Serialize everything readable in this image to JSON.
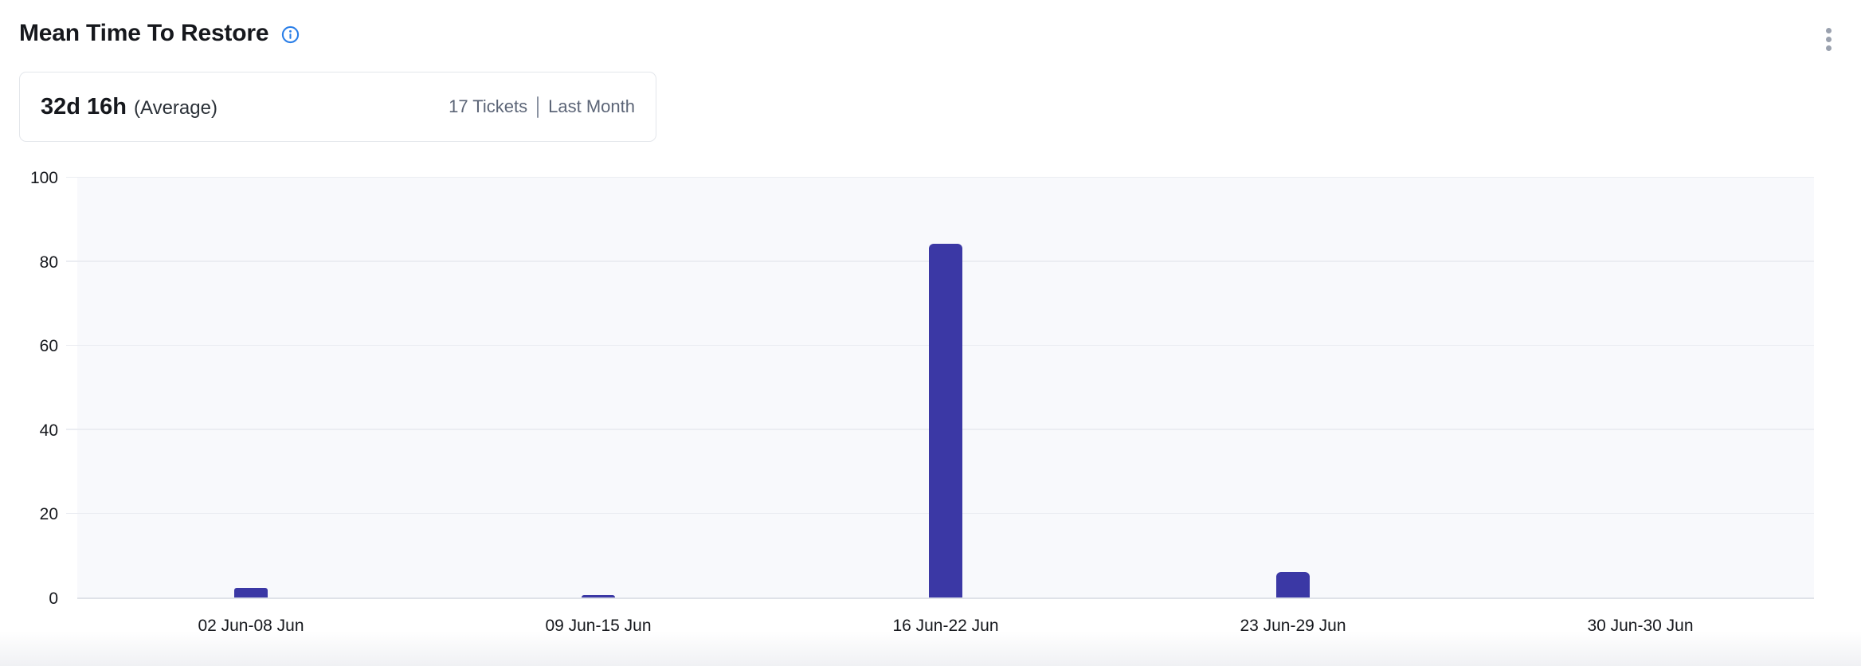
{
  "header": {
    "title": "Mean Time To Restore",
    "icons": {
      "info": "info-icon",
      "menu": "kebab-menu-icon"
    }
  },
  "summary": {
    "average_value": "32d 16h",
    "average_label": "(Average)",
    "tickets_label": "17 Tickets",
    "period_label": "Last Month"
  },
  "chart_data": {
    "type": "bar",
    "title": "Mean Time To Restore",
    "categories": [
      "02 Jun-08 Jun",
      "09 Jun-15 Jun",
      "16 Jun-22 Jun",
      "23 Jun-29 Jun",
      "30 Jun-30 Jun"
    ],
    "values": [
      2.2,
      0.5,
      84,
      6,
      0
    ],
    "yticks": [
      0,
      20,
      40,
      60,
      80,
      100
    ],
    "ylim": [
      0,
      100
    ],
    "xlabel": "",
    "ylabel": "",
    "grid": true,
    "legend": false,
    "bar_color": "#3b38a5"
  },
  "colors": {
    "bar": "#3b38a5",
    "plot_bg": "#f8f9fc",
    "gridline": "#ebedf2",
    "axis_line": "#dfe2e8",
    "text_primary": "#16181d",
    "text_muted": "#5c6577",
    "info_blue": "#2b7fe8",
    "card_border": "#e3e6eb",
    "kebab_dots": "#9aa1ae"
  }
}
